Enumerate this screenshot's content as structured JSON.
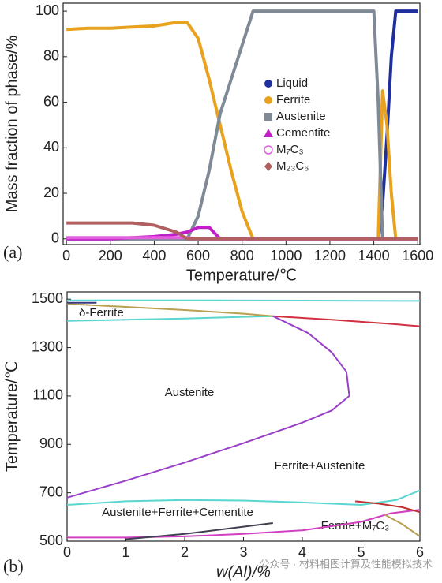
{
  "chart_data": [
    {
      "type": "line",
      "panel_label": "(a)",
      "xlabel": "Temperature/℃",
      "ylabel": "Mass fraction of phase/%",
      "xlim": [
        -15,
        1610
      ],
      "ylim": [
        -2.5,
        103.5
      ],
      "xticks": [
        0,
        200,
        400,
        600,
        800,
        1000,
        1200,
        1400,
        1600
      ],
      "yticks": [
        0,
        20,
        40,
        60,
        80,
        100
      ],
      "legend": "right",
      "x": [
        0,
        100,
        200,
        300,
        400,
        500,
        550,
        600,
        650,
        700,
        750,
        800,
        850,
        900,
        1000,
        1200,
        1400,
        1420,
        1440,
        1460,
        1480,
        1500,
        1600
      ],
      "series": [
        {
          "name": "Liquid",
          "color": "#1f2f9e",
          "values": [
            0,
            0,
            0,
            0,
            0,
            0,
            0,
            0,
            0,
            0,
            0,
            0,
            0,
            0,
            0,
            0,
            0,
            0,
            15,
            45,
            80,
            100,
            100
          ]
        },
        {
          "name": "Ferrite",
          "color": "#e8a21e",
          "values": [
            92,
            92.5,
            92.5,
            93,
            93.5,
            95,
            95,
            88,
            70,
            50,
            30,
            12,
            0,
            0,
            0,
            0,
            0,
            0,
            65,
            50,
            20,
            0,
            0
          ]
        },
        {
          "name": "Austenite",
          "color": "#7f8a96",
          "values": [
            0,
            0,
            0,
            0,
            0,
            0,
            0,
            10,
            30,
            55,
            70,
            85,
            100,
            100,
            100,
            100,
            100,
            60,
            0,
            0,
            0,
            0,
            0
          ]
        },
        {
          "name": "Cementite",
          "color": "#c21fc8",
          "values": [
            0,
            0,
            0,
            0.5,
            1,
            2,
            3,
            5,
            5,
            0,
            0,
            0,
            0,
            0,
            0,
            0,
            0,
            0,
            0,
            0,
            0,
            0,
            0
          ]
        },
        {
          "name": "M₇C₃",
          "color": "#e060e0",
          "values": [
            0.5,
            0.5,
            0.5,
            0.5,
            0.5,
            0.5,
            0.5,
            0,
            0,
            0,
            0,
            0,
            0,
            0,
            0,
            0,
            0,
            0,
            0,
            0,
            0,
            0,
            0
          ]
        },
        {
          "name": "M₂₃C₆",
          "color": "#b06060",
          "values": [
            7,
            7,
            7,
            7,
            6,
            3,
            0,
            0,
            0,
            0,
            0,
            0,
            0,
            0,
            0,
            0,
            0,
            0,
            0,
            0,
            0,
            0,
            0
          ]
        }
      ]
    },
    {
      "type": "line",
      "panel_label": "(b)",
      "xlabel": "w(Al)/%",
      "ylabel": "Temperature/℃",
      "xlim": [
        0,
        6
      ],
      "ylim": [
        500,
        1530
      ],
      "xticks": [
        0,
        1,
        2,
        3,
        4,
        5,
        6
      ],
      "yticks": [
        500,
        700,
        900,
        1100,
        1300,
        1500
      ],
      "annotations": [
        "δ-Ferrite",
        "Austenite",
        "Ferrite+Austenite",
        "Austenite+Ferrite+Cementite",
        "Ferrite+M₇C₃"
      ],
      "series": [
        {
          "color": "#5ad6d0",
          "x": [
            0,
            2,
            4,
            6
          ],
          "values": [
            1495,
            1495,
            1494,
            1493
          ]
        },
        {
          "color": "#5ad6d0",
          "x": [
            0,
            1,
            2,
            3,
            3.5
          ],
          "values": [
            1410,
            1415,
            1420,
            1427,
            1430
          ]
        },
        {
          "color": "#b8a050",
          "x": [
            0,
            1,
            2,
            3,
            3.5
          ],
          "values": [
            1480,
            1468,
            1455,
            1440,
            1430
          ]
        },
        {
          "color": "#d03040",
          "x": [
            3.5,
            4.5,
            5.5,
            6
          ],
          "values": [
            1430,
            1415,
            1398,
            1388
          ]
        },
        {
          "color": "#3a3a80",
          "x": [
            0,
            0.5
          ],
          "values": [
            1485,
            1485
          ]
        },
        {
          "color": "#9a40c8",
          "x": [
            0,
            1,
            2,
            3,
            4,
            4.5,
            4.8,
            4.75,
            4.5,
            4.1,
            3.5
          ],
          "values": [
            680,
            750,
            825,
            905,
            990,
            1040,
            1100,
            1200,
            1280,
            1360,
            1430
          ]
        },
        {
          "color": "#5ad6d0",
          "x": [
            0,
            1,
            2,
            3,
            4,
            5,
            5.6,
            6
          ],
          "values": [
            650,
            665,
            670,
            668,
            660,
            650,
            670,
            710
          ]
        },
        {
          "color": "#d040c0",
          "x": [
            0,
            1,
            2,
            3,
            4,
            5,
            5.5,
            6
          ],
          "values": [
            515,
            515,
            520,
            530,
            545,
            580,
            615,
            630
          ]
        },
        {
          "color": "#404050",
          "x": [
            1,
            2,
            3,
            3.5
          ],
          "values": [
            508,
            530,
            560,
            575
          ]
        },
        {
          "color": "#c03030",
          "x": [
            4.9,
            5.3,
            5.7,
            6
          ],
          "values": [
            665,
            655,
            640,
            620
          ]
        },
        {
          "color": "#b8a050",
          "x": [
            5.4,
            5.7,
            6
          ],
          "values": [
            610,
            570,
            520
          ]
        }
      ]
    }
  ],
  "watermark": "公众号 · 材料相图计算及性能模拟技术"
}
